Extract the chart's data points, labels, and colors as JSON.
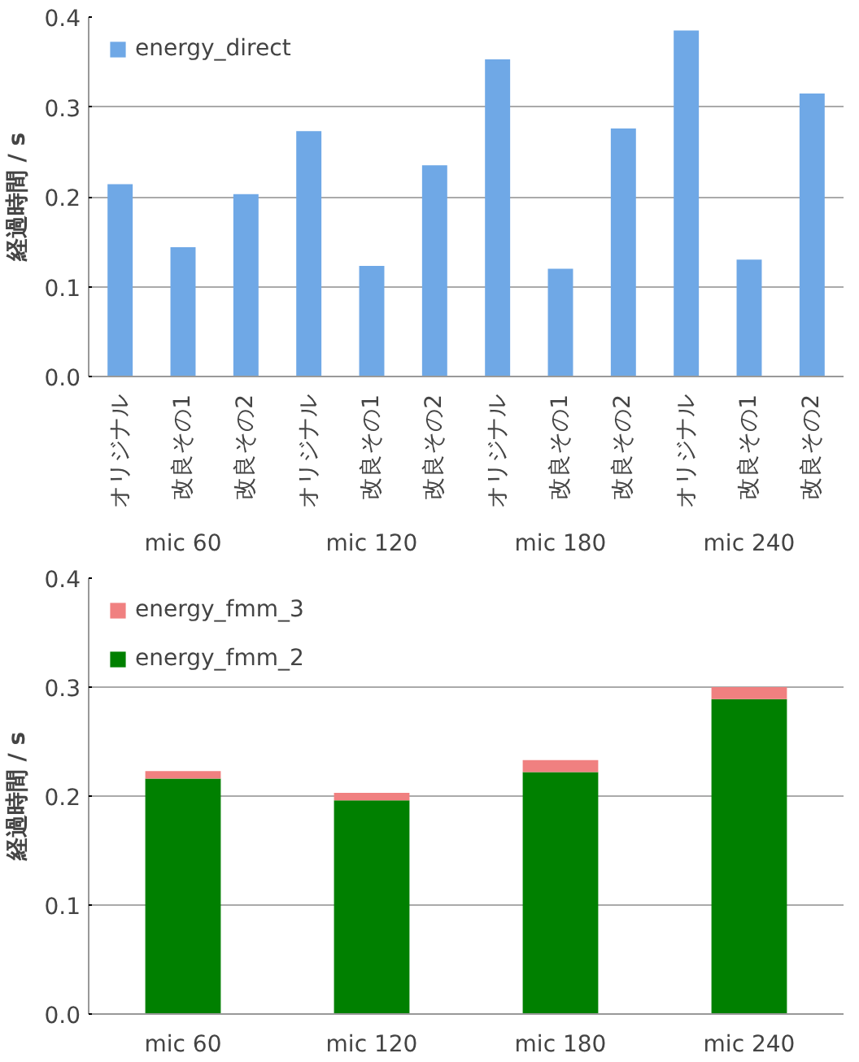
{
  "chart_data": [
    {
      "type": "bar",
      "ylabel": "経過時間 / s",
      "categories": [
        "オリジナル",
        "改良その1",
        "改良その2",
        "オリジナル",
        "改良その1",
        "改良その2",
        "オリジナル",
        "改良その1",
        "改良その2",
        "オリジナル",
        "改良その1",
        "改良その2"
      ],
      "series": [
        {
          "name": "energy_direct",
          "color": "#6fa8e6",
          "values": [
            0.214,
            0.144,
            0.203,
            0.273,
            0.123,
            0.235,
            0.353,
            0.12,
            0.276,
            0.385,
            0.13,
            0.315
          ]
        }
      ],
      "annotations": [
        "mic 60",
        "mic 120",
        "mic 180",
        "mic 240"
      ],
      "ylim": [
        0,
        0.4
      ],
      "yticks": [
        {
          "value": 0,
          "label": "0.0"
        },
        {
          "value": 0.1,
          "label": "0.1"
        },
        {
          "value": 0.2,
          "label": "0.2"
        },
        {
          "value": 0.3,
          "label": "0.3"
        },
        {
          "value": 0.4,
          "label": "0.4"
        }
      ],
      "grid": "y",
      "legend": "top left"
    },
    {
      "type": "bar",
      "stacked": true,
      "ylabel": "経過時間 / s",
      "categories": [
        "mic 60",
        "mic 120",
        "mic 180",
        "mic 240"
      ],
      "series": [
        {
          "name": "energy_fmm_2",
          "color": "#008000",
          "values": [
            0.216,
            0.196,
            0.222,
            0.289
          ]
        },
        {
          "name": "energy_fmm_3",
          "color": "#f08080",
          "values": [
            0.007,
            0.007,
            0.011,
            0.011
          ]
        }
      ],
      "ylim": [
        0,
        0.4
      ],
      "yticks": [
        {
          "value": 0,
          "label": "0.0"
        },
        {
          "value": 0.1,
          "label": "0.1"
        },
        {
          "value": 0.2,
          "label": "0.2"
        },
        {
          "value": 0.3,
          "label": "0.3"
        },
        {
          "value": 0.4,
          "label": "0.4"
        }
      ],
      "grid": "y",
      "legend": "top left"
    }
  ]
}
